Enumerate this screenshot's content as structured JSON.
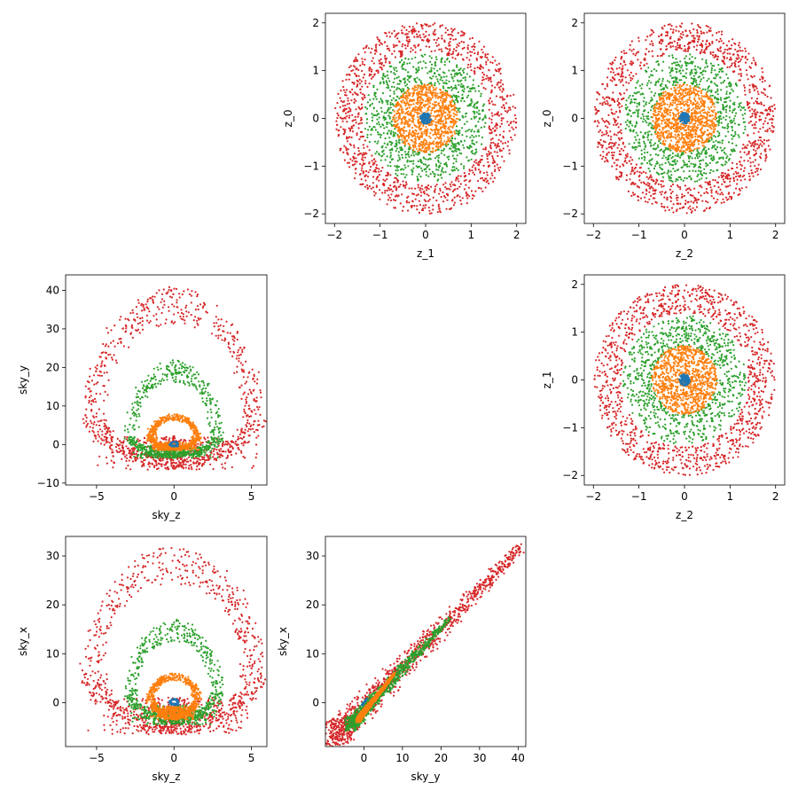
{
  "chart_data": [
    {
      "type": "scatter",
      "panel": "z_1-z_0",
      "xlabel": "z_1",
      "ylabel": "z_0",
      "xlim": [
        -2.2,
        2.2
      ],
      "ylim": [
        -2.2,
        2.2
      ],
      "xticks": [
        -2,
        -1,
        0,
        1,
        2
      ],
      "yticks": [
        -2,
        -1,
        0,
        1,
        2
      ],
      "grid": false,
      "series": [
        {
          "color": "#d62728",
          "shape": "ring",
          "radius": [
            1.4,
            2.0
          ],
          "count": 1100
        },
        {
          "color": "#2ca02c",
          "shape": "ring",
          "radius": [
            0.7,
            1.35
          ],
          "count": 800
        },
        {
          "color": "#ff7f0e",
          "shape": "disk",
          "radius": [
            0.0,
            0.72
          ],
          "count": 900
        },
        {
          "color": "#1f77b4",
          "shape": "disk",
          "radius": [
            0.0,
            0.12
          ],
          "count": 120
        }
      ]
    },
    {
      "type": "scatter",
      "panel": "z_2-z_0",
      "xlabel": "z_2",
      "ylabel": "z_0",
      "xlim": [
        -2.2,
        2.2
      ],
      "ylim": [
        -2.2,
        2.2
      ],
      "xticks": [
        -2,
        -1,
        0,
        1,
        2
      ],
      "yticks": [
        -2,
        -1,
        0,
        1,
        2
      ],
      "grid": false,
      "series": [
        {
          "color": "#d62728",
          "shape": "ring",
          "radius": [
            1.4,
            2.0
          ],
          "count": 1100
        },
        {
          "color": "#2ca02c",
          "shape": "ring",
          "radius": [
            0.7,
            1.35
          ],
          "count": 800
        },
        {
          "color": "#ff7f0e",
          "shape": "disk",
          "radius": [
            0.0,
            0.72
          ],
          "count": 900
        },
        {
          "color": "#1f77b4",
          "shape": "disk",
          "radius": [
            0.0,
            0.12
          ],
          "count": 120
        }
      ]
    },
    {
      "type": "scatter",
      "panel": "sky_z-sky_y",
      "xlabel": "sky_z",
      "ylabel": "sky_y",
      "xlim": [
        -7,
        6
      ],
      "ylim": [
        -10.5,
        44
      ],
      "xticks": [
        -5,
        0,
        5
      ],
      "yticks": [
        -10,
        0,
        10,
        20,
        30,
        40
      ],
      "grid": false,
      "series": [
        {
          "color": "#d62728",
          "shape": "lens",
          "radius": [
            5.0,
            5.3
          ],
          "ylow": -6.5,
          "ycenter": 8,
          "yhigh": 41,
          "count": 1100
        },
        {
          "color": "#2ca02c",
          "shape": "lens",
          "radius": [
            2.6,
            2.9
          ],
          "ylow": -3.5,
          "ycenter": 2,
          "yhigh": 22,
          "count": 800
        },
        {
          "color": "#ff7f0e",
          "shape": "lens",
          "radius": [
            1.3,
            1.6
          ],
          "ylow": -1.5,
          "ycenter": 2,
          "yhigh": 8,
          "count": 900
        },
        {
          "color": "#1f77b4",
          "shape": "lens",
          "radius": [
            0.2,
            0.3
          ],
          "ylow": -0.5,
          "ycenter": 0,
          "yhigh": 0.8,
          "count": 120
        }
      ]
    },
    {
      "type": "scatter",
      "panel": "z_2-z_1",
      "xlabel": "z_2",
      "ylabel": "z_1",
      "xlim": [
        -2.2,
        2.2
      ],
      "ylim": [
        -2.2,
        2.2
      ],
      "xticks": [
        -2,
        -1,
        0,
        1,
        2
      ],
      "yticks": [
        -2,
        -1,
        0,
        1,
        2
      ],
      "grid": false,
      "series": [
        {
          "color": "#d62728",
          "shape": "ring",
          "radius": [
            1.4,
            2.0
          ],
          "count": 1100
        },
        {
          "color": "#2ca02c",
          "shape": "ring",
          "radius": [
            0.7,
            1.35
          ],
          "count": 800
        },
        {
          "color": "#ff7f0e",
          "shape": "disk",
          "radius": [
            0.0,
            0.72
          ],
          "count": 900
        },
        {
          "color": "#1f77b4",
          "shape": "disk",
          "radius": [
            0.0,
            0.12
          ],
          "count": 120
        }
      ]
    },
    {
      "type": "scatter",
      "panel": "sky_z-sky_x",
      "xlabel": "sky_z",
      "ylabel": "sky_x",
      "xlim": [
        -7,
        6
      ],
      "ylim": [
        -9,
        34
      ],
      "xticks": [
        -5,
        0,
        5
      ],
      "yticks": [
        0,
        10,
        20,
        30
      ],
      "grid": false,
      "series": [
        {
          "color": "#d62728",
          "shape": "lens",
          "radius": [
            5.0,
            5.3
          ],
          "ylow": -6.5,
          "ycenter": 6,
          "yhigh": 32,
          "count": 1100
        },
        {
          "color": "#2ca02c",
          "shape": "lens",
          "radius": [
            2.6,
            2.9
          ],
          "ylow": -4.5,
          "ycenter": 2,
          "yhigh": 17,
          "count": 800
        },
        {
          "color": "#ff7f0e",
          "shape": "lens",
          "radius": [
            1.3,
            1.6
          ],
          "ylow": -3.5,
          "ycenter": 1,
          "yhigh": 6,
          "count": 900
        },
        {
          "color": "#1f77b4",
          "shape": "lens",
          "radius": [
            0.2,
            0.3
          ],
          "ylow": -0.5,
          "ycenter": 0,
          "yhigh": 0.8,
          "count": 120
        }
      ]
    },
    {
      "type": "scatter",
      "panel": "sky_y-sky_x",
      "xlabel": "sky_y",
      "ylabel": "sky_x",
      "xlim": [
        -10,
        42
      ],
      "ylim": [
        -9,
        34
      ],
      "xticks": [
        0,
        10,
        20,
        30,
        40
      ],
      "yticks": [
        0,
        10,
        20,
        30
      ],
      "grid": false,
      "series": [
        {
          "color": "#d62728",
          "shape": "band",
          "xlow": -7,
          "xhigh": 41,
          "ylow": -6.5,
          "yhigh": 32,
          "count": 1100
        },
        {
          "color": "#2ca02c",
          "shape": "band",
          "xlow": -3.5,
          "xhigh": 22,
          "ylow": -4.5,
          "yhigh": 17,
          "count": 800
        },
        {
          "color": "#ff7f0e",
          "shape": "band",
          "xlow": -1.5,
          "xhigh": 8,
          "ylow": -3.5,
          "yhigh": 6,
          "count": 900
        },
        {
          "color": "#1f77b4",
          "shape": "band",
          "xlow": -0.5,
          "xhigh": 0.8,
          "ylow": -0.5,
          "yhigh": 0.8,
          "count": 120
        }
      ]
    }
  ]
}
